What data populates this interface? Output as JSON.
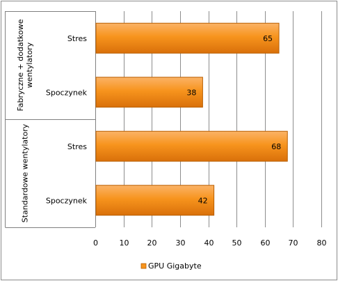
{
  "chart_data": {
    "type": "bar",
    "orientation": "horizontal",
    "groups": [
      {
        "label": "Fabryczne + dodatkowe wentylatory",
        "label_lines": [
          "Fabryczne + dodatkowe",
          "wentylatory"
        ],
        "categories": [
          "Stres",
          "Spoczynek"
        ],
        "values": [
          65,
          38
        ]
      },
      {
        "label": "Standardowe wentylatory",
        "label_lines": [
          "Standardowe wentylatory"
        ],
        "categories": [
          "Stres",
          "Spoczynek"
        ],
        "values": [
          68,
          42
        ]
      }
    ],
    "series": [
      {
        "name": "GPU Gigabyte",
        "color": "#f7941d"
      }
    ],
    "xlim": [
      0,
      80
    ],
    "xticks": [
      0,
      10,
      20,
      30,
      40,
      50,
      60,
      70,
      80
    ],
    "grid": "vertical",
    "legend_position": "bottom",
    "data_labels": true
  }
}
